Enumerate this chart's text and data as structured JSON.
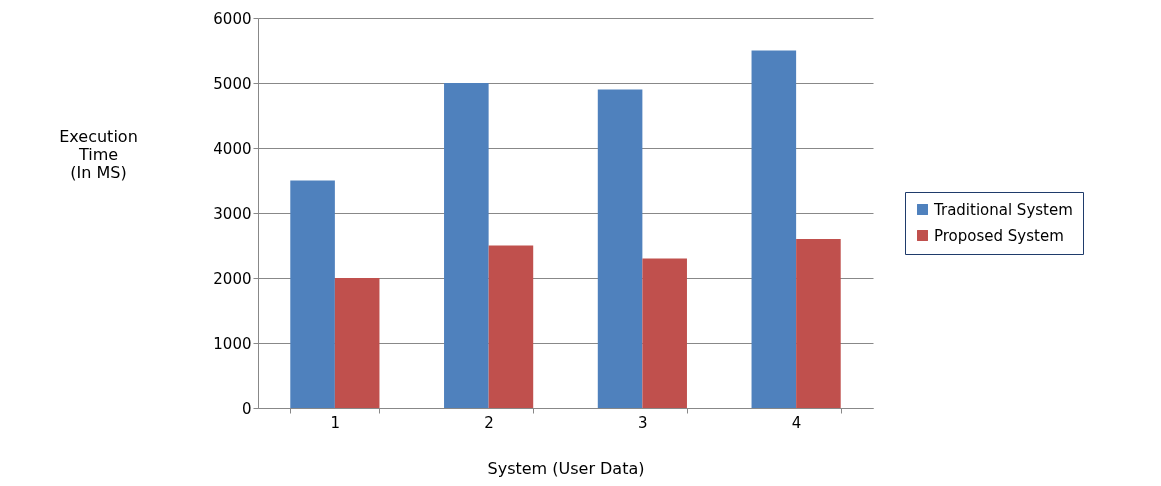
{
  "chart_data": {
    "type": "bar",
    "xlabel": "System (User Data)",
    "ylabel": "Execution\nTime\n(In MS)",
    "categories": [
      "1",
      "2",
      "3",
      "4"
    ],
    "series": [
      {
        "name": "Traditional System",
        "color": "#4f81bd",
        "values": [
          3500,
          5000,
          4900,
          5500
        ]
      },
      {
        "name": "Proposed System",
        "color": "#c0504d",
        "values": [
          2000,
          2500,
          2300,
          2600
        ]
      }
    ],
    "ylim": [
      0,
      6000
    ],
    "yticks": [
      0,
      1000,
      2000,
      3000,
      4000,
      5000,
      6000
    ],
    "grid": "y",
    "legend": "right"
  }
}
